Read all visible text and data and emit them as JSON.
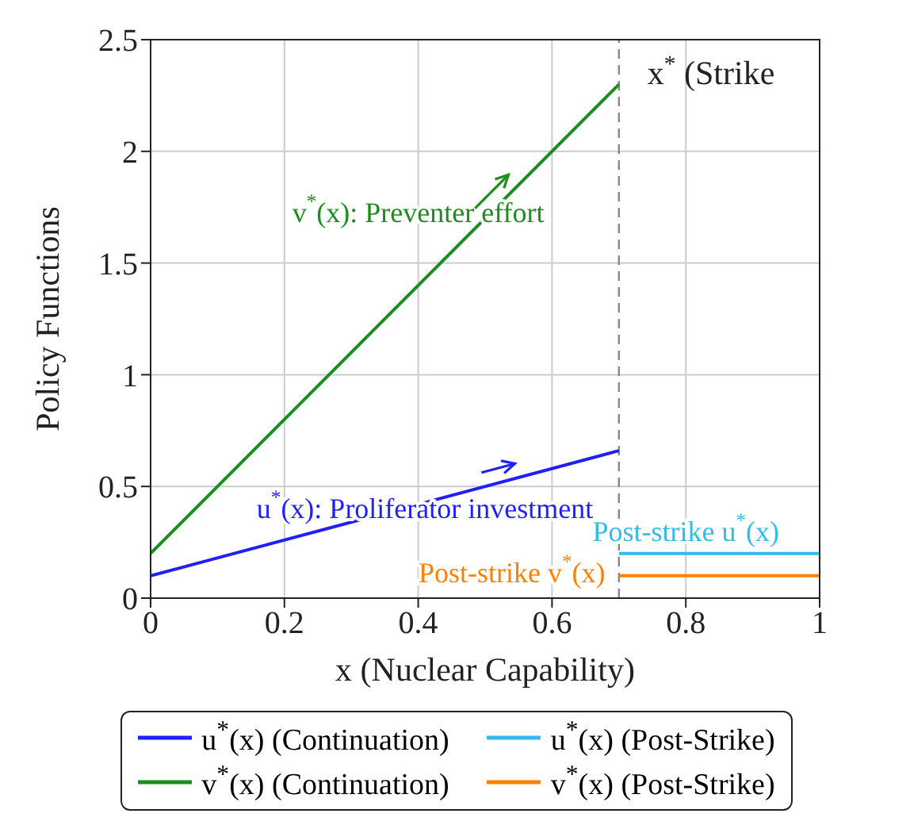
{
  "chart_data": {
    "type": "line",
    "xlabel": "x (Nuclear Capability)",
    "ylabel": "Policy Functions",
    "series": [
      {
        "name": "u$^{*}$(x) (Continuation)",
        "color": "#1f1fff",
        "x": [
          0,
          0.7
        ],
        "values": [
          0.1,
          0.66
        ]
      },
      {
        "name": "v$^{*}$(x) (Continuation)",
        "color": "#1e8c1e",
        "x": [
          0,
          0.7
        ],
        "values": [
          0.2,
          2.3
        ]
      },
      {
        "name": "u$^{*}$(x) (Post-Strike)",
        "color": "#33bbee",
        "x": [
          0.7,
          1
        ],
        "values": [
          0.2,
          0.2
        ]
      },
      {
        "name": "v$^{*}$(x) (Post-Strike)",
        "color": "#ff8000",
        "x": [
          0.7,
          1
        ],
        "values": [
          0.1,
          0.1
        ]
      }
    ],
    "xlim": [
      0,
      1
    ],
    "xticks": [
      0,
      0.2,
      0.4,
      0.6,
      0.8,
      1
    ],
    "ylim": [
      0,
      2.5
    ],
    "yticks": [
      0,
      0.5,
      1,
      1.5,
      2,
      2.5
    ],
    "ref_lines": [
      {
        "axis": "x",
        "value": 0.7,
        "label": "x$^{*}$ (Strike",
        "color": "#888888",
        "line_style": "dashed"
      }
    ],
    "annotations": [
      "u$^{*}$(x): Proliferator investment",
      "v$^{*}$(x): Preventer effort",
      "Post-strike u$^{*}$(x)",
      "Post-strike v$^{*}$(x)"
    ],
    "grid": true,
    "legend": "bottom",
    "marker": "none",
    "line_style": "solid"
  }
}
